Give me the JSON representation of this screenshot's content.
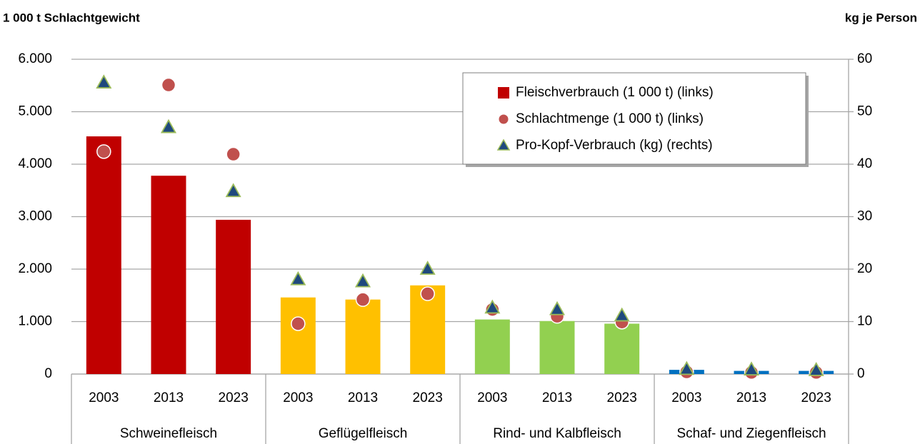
{
  "chart_data": {
    "type": "bar",
    "y_label": "1 000 t Schlachtgewicht",
    "y2_label": "kg je Person",
    "categories": [
      "2003",
      "2013",
      "2023",
      "2003",
      "2013",
      "2023",
      "2003",
      "2013",
      "2023",
      "2003",
      "2013",
      "2023"
    ],
    "groups": [
      "Schweinefleisch",
      "Geflügelfleisch",
      "Rind- und Kalbfleisch",
      "Schaf- und Ziegenfleisch"
    ],
    "series": [
      {
        "name": "Fleischverbrauch (1 000 t) (links)",
        "type": "bar",
        "color": "#c00000",
        "colors": [
          "#c00000",
          "#c00000",
          "#c00000",
          "#ffc000",
          "#ffc000",
          "#ffc000",
          "#92d050",
          "#92d050",
          "#92d050",
          "#0070c0",
          "#0070c0",
          "#0070c0"
        ],
        "values": [
          4530,
          3780,
          2940,
          1460,
          1420,
          1690,
          1040,
          1010,
          960,
          80,
          60,
          60
        ]
      },
      {
        "name": "Schlachtmenge (1 000 t) (links)",
        "type": "circle",
        "color": "#c0504d",
        "edgecolor": "#ffffff",
        "values": [
          4240,
          5510,
          4190,
          960,
          1420,
          1530,
          1230,
          1100,
          990,
          40,
          30,
          30
        ]
      },
      {
        "name": "Pro-Kopf-Verbrauch (kg) (rechts)",
        "type": "triangle",
        "color": "#1f497d",
        "edgecolor": "#9bbb59",
        "axis": "y2",
        "values": [
          55.5,
          47,
          34.8,
          18,
          17.6,
          20,
          12.6,
          12.3,
          11.1,
          0.9,
          0.8,
          0.7
        ]
      }
    ],
    "ylim": [
      0,
      6000
    ],
    "yticks": [
      0,
      {
        "value": 1000,
        "label": "1.000"
      },
      {
        "value": 2000,
        "label": "2.000"
      },
      {
        "value": 3000,
        "label": "3.000"
      },
      {
        "value": 4000,
        "label": "4.000"
      },
      {
        "value": 5000,
        "label": "5.000"
      },
      {
        "value": 6000,
        "label": "6.000"
      }
    ],
    "y2lim": [
      0,
      60
    ],
    "y2ticks": [
      0,
      10,
      20,
      30,
      40,
      50,
      60
    ],
    "grid": true,
    "legend": "upper right"
  }
}
